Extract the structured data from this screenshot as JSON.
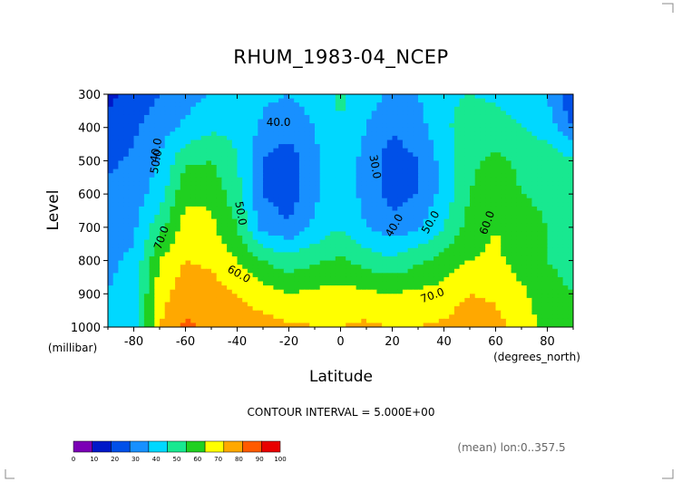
{
  "chart_data": {
    "type": "heatmap",
    "title": "RHUM_1983-04_NCEP",
    "xlabel": "Latitude",
    "xunits": "(degrees_north)",
    "ylabel": "Level",
    "yunits": "(millibar)",
    "x_ticks": [
      "-80",
      "-60",
      "-40",
      "-20",
      "0",
      "20",
      "40",
      "60",
      "80"
    ],
    "y_ticks": [
      "300",
      "400",
      "500",
      "600",
      "700",
      "800",
      "900",
      "1000"
    ],
    "xlim": [
      -90,
      90
    ],
    "ylim": [
      1000,
      300
    ],
    "contour_interval_text": "CONTOUR INTERVAL = 5.000E+00",
    "mean_text": "(mean) lon:0..357.5",
    "contour_labels": [
      "40.0",
      "40.0",
      "50.0",
      "30.0",
      "50.0",
      "40.0",
      "50.0",
      "60.0",
      "70.0",
      "60.0",
      "70.0"
    ],
    "colorbar": {
      "levels": [
        "0",
        "10",
        "20",
        "30",
        "40",
        "50",
        "60",
        "70",
        "80",
        "90",
        "100"
      ],
      "colors": [
        "#7b00b5",
        "#0018c8",
        "#0050e8",
        "#1890ff",
        "#00d8ff",
        "#18e890",
        "#20d020",
        "#ffff00",
        "#ffa800",
        "#ff5a00",
        "#e80000"
      ]
    },
    "lat": [
      -90,
      -80,
      -70,
      -60,
      -50,
      -40,
      -30,
      -20,
      -10,
      0,
      10,
      20,
      30,
      40,
      50,
      60,
      70,
      80,
      90
    ],
    "levels": [
      300,
      400,
      500,
      600,
      700,
      800,
      900,
      1000
    ],
    "values": [
      [
        18,
        22,
        30,
        36,
        40,
        45,
        42,
        40,
        44,
        52,
        44,
        38,
        40,
        48,
        50,
        48,
        44,
        40,
        20
      ],
      [
        22,
        28,
        36,
        42,
        48,
        48,
        38,
        34,
        40,
        50,
        40,
        32,
        36,
        48,
        55,
        55,
        50,
        45,
        30
      ],
      [
        28,
        32,
        40,
        58,
        60,
        50,
        30,
        24,
        38,
        48,
        36,
        24,
        30,
        44,
        58,
        62,
        58,
        56,
        52
      ],
      [
        32,
        35,
        45,
        68,
        68,
        54,
        30,
        24,
        38,
        48,
        36,
        26,
        30,
        44,
        60,
        66,
        60,
        58,
        55
      ],
      [
        35,
        38,
        56,
        74,
        72,
        60,
        36,
        32,
        42,
        50,
        40,
        34,
        38,
        50,
        64,
        70,
        64,
        60,
        58
      ],
      [
        38,
        42,
        70,
        80,
        78,
        70,
        60,
        54,
        58,
        62,
        56,
        52,
        58,
        64,
        70,
        72,
        66,
        60,
        56
      ],
      [
        40,
        44,
        76,
        86,
        84,
        80,
        74,
        70,
        72,
        74,
        72,
        70,
        72,
        74,
        80,
        78,
        72,
        64,
        60
      ],
      [
        42,
        46,
        80,
        92,
        88,
        86,
        84,
        82,
        80,
        80,
        82,
        80,
        80,
        82,
        86,
        84,
        76,
        66,
        62
      ]
    ]
  }
}
